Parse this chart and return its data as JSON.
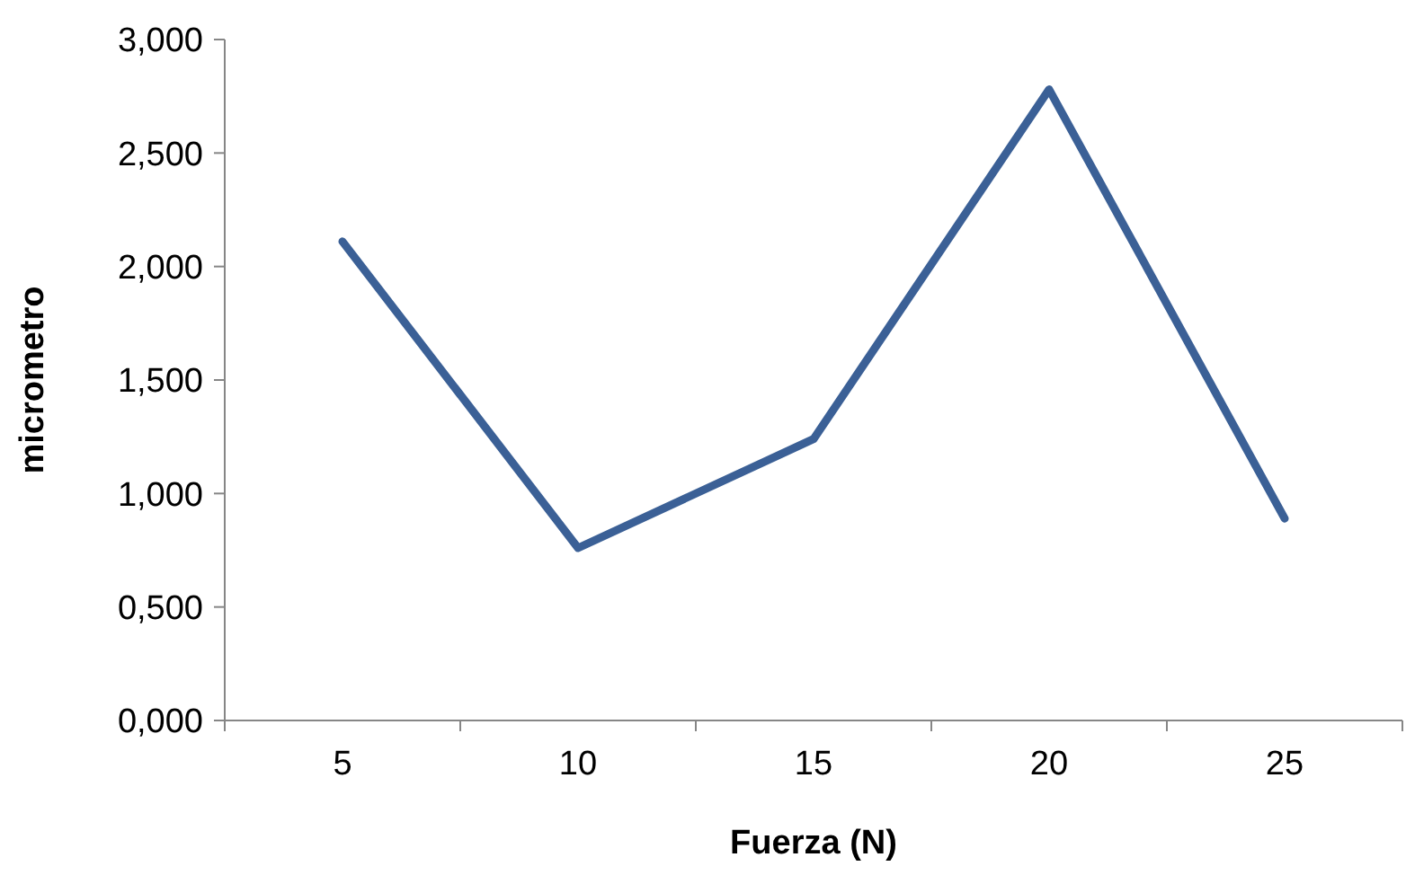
{
  "chart_data": {
    "type": "line",
    "xlabel": "Fuerza (N)",
    "ylabel": "micrometro",
    "categories": [
      "5",
      "10",
      "15",
      "20",
      "25"
    ],
    "series": [
      {
        "color": "#3b6096",
        "values": [
          2.11,
          0.76,
          1.24,
          2.78,
          0.89
        ]
      }
    ],
    "ylim": [
      0,
      3
    ],
    "yticks": [
      {
        "value": 0,
        "label": "0,000"
      },
      {
        "value": 0.5,
        "label": "0,500"
      },
      {
        "value": 1,
        "label": "1,000"
      },
      {
        "value": 1.5,
        "label": "1,500"
      },
      {
        "value": 2,
        "label": "2,000"
      },
      {
        "value": 2.5,
        "label": "2,500"
      },
      {
        "value": 3,
        "label": "3,000"
      }
    ],
    "marker": "none",
    "line_style": "solid"
  }
}
